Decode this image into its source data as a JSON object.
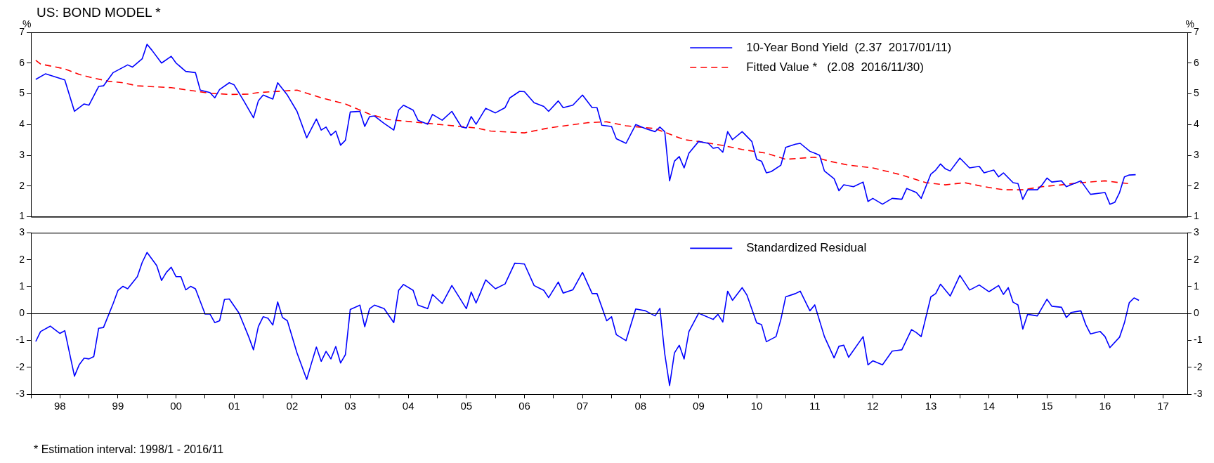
{
  "chart_data": [
    {
      "type": "line",
      "title": "US: BOND MODEL *",
      "ylabel": "%",
      "y2label": "%",
      "xlim": [
        "1998-01",
        "2017-12"
      ],
      "ylim": [
        1,
        7
      ],
      "yticks": [
        1,
        2,
        3,
        4,
        5,
        6,
        7
      ],
      "y2lim": [
        1,
        7
      ],
      "y2ticks": [
        1,
        2,
        3,
        4,
        5,
        6,
        7
      ],
      "tick_labels": "y",
      "legend": "top",
      "grid": false,
      "series": [
        {
          "name": "10-Year Bond Yield  (2.37  2017/01/11)",
          "color": "#0000ff",
          "line_style": "solid",
          "x": [
            "1998-02",
            "1998-04",
            "1998-08",
            "1998-10",
            "1998-12",
            "1999-01",
            "1999-03",
            "1999-04",
            "1999-06",
            "1999-09",
            "1999-10",
            "1999-12",
            "2000-01",
            "2000-02",
            "2000-04",
            "2000-06",
            "2000-07",
            "2000-09",
            "2000-11",
            "2000-12",
            "2001-02",
            "2001-03",
            "2001-04",
            "2001-06",
            "2001-07",
            "2001-09",
            "2001-11",
            "2001-12",
            "2002-01",
            "2002-03",
            "2002-04",
            "2002-06",
            "2002-08",
            "2002-10",
            "2002-12",
            "2003-01",
            "2003-02",
            "2003-03",
            "2003-04",
            "2003-05",
            "2003-06",
            "2003-07",
            "2003-09",
            "2003-10",
            "2003-11",
            "2003-12",
            "2004-02",
            "2004-04",
            "2004-05",
            "2004-06",
            "2004-08",
            "2004-09",
            "2004-11",
            "2004-12",
            "2005-02",
            "2005-04",
            "2005-06",
            "2005-07",
            "2005-08",
            "2005-09",
            "2005-11",
            "2006-01",
            "2006-03",
            "2006-04",
            "2006-06",
            "2006-07",
            "2006-09",
            "2006-11",
            "2006-12",
            "2007-02",
            "2007-03",
            "2007-05",
            "2007-07",
            "2007-09",
            "2007-10",
            "2007-11",
            "2008-01",
            "2008-02",
            "2008-04",
            "2008-06",
            "2008-08",
            "2008-10",
            "2008-11",
            "2008-12",
            "2009-01",
            "2009-02",
            "2009-03",
            "2009-04",
            "2009-05",
            "2009-07",
            "2009-09",
            "2009-10",
            "2009-11",
            "2009-12",
            "2010-01",
            "2010-02",
            "2010-04",
            "2010-06",
            "2010-07",
            "2010-08",
            "2010-09",
            "2010-10",
            "2010-12",
            "2011-01",
            "2011-03",
            "2011-04",
            "2011-06",
            "2011-07",
            "2011-08",
            "2011-09",
            "2011-11",
            "2011-12",
            "2012-01",
            "2012-03",
            "2012-05",
            "2012-06",
            "2012-07",
            "2012-09",
            "2012-11",
            "2013-01",
            "2013-02",
            "2013-04",
            "2013-05",
            "2013-07",
            "2013-08",
            "2013-09",
            "2013-10",
            "2013-11",
            "2014-01",
            "2014-03",
            "2014-05",
            "2014-06",
            "2014-08",
            "2014-09",
            "2014-10",
            "2014-12",
            "2015-01",
            "2015-02",
            "2015-03",
            "2015-05",
            "2015-06",
            "2015-07",
            "2015-08",
            "2015-10",
            "2015-11",
            "2016-02",
            "2016-04",
            "2016-07",
            "2016-08",
            "2016-09",
            "2016-10",
            "2016-11",
            "2016-12",
            "2017-01-11"
          ],
          "values": [
            5.47,
            5.65,
            5.45,
            4.43,
            4.67,
            4.63,
            5.24,
            5.26,
            5.69,
            5.94,
            5.87,
            6.14,
            6.61,
            6.42,
            6.0,
            6.22,
            6.0,
            5.73,
            5.69,
            5.12,
            5.04,
            4.87,
            5.14,
            5.36,
            5.29,
            4.77,
            4.22,
            4.77,
            4.96,
            4.83,
            5.36,
            4.96,
            4.43,
            3.57,
            4.18,
            3.82,
            3.92,
            3.65,
            3.79,
            3.33,
            3.49,
            4.41,
            4.43,
            3.94,
            4.26,
            4.28,
            4.04,
            3.82,
            4.47,
            4.63,
            4.47,
            4.14,
            4.01,
            4.33,
            4.14,
            4.43,
            3.92,
            3.89,
            4.26,
            4.01,
            4.53,
            4.38,
            4.55,
            4.87,
            5.08,
            5.07,
            4.71,
            4.59,
            4.43,
            4.77,
            4.55,
            4.63,
            4.96,
            4.55,
            4.55,
            3.98,
            3.94,
            3.54,
            3.39,
            4.0,
            3.87,
            3.77,
            3.92,
            3.77,
            2.17,
            2.81,
            2.96,
            2.59,
            3.07,
            3.45,
            3.39,
            3.23,
            3.26,
            3.1,
            3.77,
            3.51,
            3.77,
            3.45,
            2.87,
            2.81,
            2.43,
            2.47,
            2.68,
            3.26,
            3.36,
            3.39,
            3.13,
            3.07,
            3.0,
            2.49,
            2.24,
            1.85,
            2.04,
            1.98,
            2.13,
            1.5,
            1.6,
            1.41,
            1.6,
            1.57,
            1.92,
            1.79,
            1.6,
            2.39,
            2.52,
            2.72,
            2.56,
            2.49,
            2.91,
            2.59,
            2.64,
            2.43,
            2.52,
            2.3,
            2.43,
            2.11,
            2.08,
            1.57,
            1.88,
            1.88,
            2.04,
            2.26,
            2.13,
            2.17,
            1.98,
            2.17,
            1.73,
            1.79,
            1.41,
            1.47,
            1.79,
            2.3,
            2.36,
            2.37
          ]
        },
        {
          "name": "Fitted Value *   (2.08  2016/11/30)",
          "color": "#ff0000",
          "line_style": "dashed",
          "x": [
            "1998-02",
            "1998-03",
            "1998-08",
            "1998-11",
            "1999-02",
            "1999-05",
            "1999-08",
            "1999-11",
            "2000-06",
            "2001-02",
            "2001-06",
            "2001-10",
            "2001-12",
            "2002-08",
            "2003-01",
            "2003-06",
            "2003-11",
            "2004-03",
            "2005-01",
            "2005-09",
            "2005-12",
            "2006-07",
            "2006-12",
            "2007-08",
            "2007-12",
            "2008-04",
            "2008-10",
            "2009-04",
            "2009-07",
            "2009-12",
            "2010-04",
            "2010-09",
            "2011-01",
            "2011-07",
            "2011-10",
            "2012-02",
            "2012-07",
            "2013-01",
            "2013-06",
            "2013-10",
            "2014-02",
            "2014-06",
            "2014-10",
            "2015-02",
            "2015-06",
            "2015-10",
            "2016-02",
            "2016-07",
            "2016-10",
            "2016-11-30"
          ],
          "values": [
            6.09,
            5.97,
            5.81,
            5.63,
            5.51,
            5.41,
            5.36,
            5.26,
            5.2,
            5.02,
            4.98,
            4.99,
            5.04,
            5.12,
            4.87,
            4.67,
            4.34,
            4.16,
            4.01,
            3.89,
            3.79,
            3.73,
            3.89,
            4.06,
            4.09,
            3.96,
            3.87,
            3.51,
            3.45,
            3.32,
            3.19,
            3.07,
            2.87,
            2.94,
            2.81,
            2.68,
            2.59,
            2.36,
            2.11,
            2.04,
            2.11,
            1.98,
            1.88,
            1.88,
            1.98,
            2.04,
            2.11,
            2.17,
            2.11,
            2.08
          ]
        }
      ]
    },
    {
      "type": "line",
      "xlim": [
        "1998-01",
        "2017-12"
      ],
      "ylim": [
        -3,
        3
      ],
      "yticks": [
        -3,
        -2,
        -1,
        0,
        1,
        2,
        3
      ],
      "y2lim": [
        -3,
        3
      ],
      "y2ticks": [
        -3,
        -2,
        -1,
        0,
        1,
        2,
        3
      ],
      "legend": "top",
      "grid": false,
      "xticks": [
        {
          "value": "1998",
          "label": null
        },
        {
          "value": "1998-07",
          "label": "98"
        },
        {
          "value": "1999",
          "label": null
        },
        {
          "value": "1999-07",
          "label": "99"
        },
        {
          "value": "2000",
          "label": null
        },
        {
          "value": "2000-07",
          "label": "00"
        },
        {
          "value": "2001",
          "label": null
        },
        {
          "value": "2001-07",
          "label": "01"
        },
        {
          "value": "2002",
          "label": null
        },
        {
          "value": "2002-07",
          "label": "02"
        },
        {
          "value": "2003",
          "label": null
        },
        {
          "value": "2003-07",
          "label": "03"
        },
        {
          "value": "2004",
          "label": null
        },
        {
          "value": "2004-07",
          "label": "04"
        },
        {
          "value": "2005",
          "label": null
        },
        {
          "value": "2005-07",
          "label": "05"
        },
        {
          "value": "2006",
          "label": null
        },
        {
          "value": "2006-07",
          "label": "06"
        },
        {
          "value": "2007",
          "label": null
        },
        {
          "value": "2007-07",
          "label": "07"
        },
        {
          "value": "2008",
          "label": null
        },
        {
          "value": "2008-07",
          "label": "08"
        },
        {
          "value": "2009",
          "label": null
        },
        {
          "value": "2009-07",
          "label": "09"
        },
        {
          "value": "2010",
          "label": null
        },
        {
          "value": "2010-07",
          "label": "10"
        },
        {
          "value": "2011",
          "label": null
        },
        {
          "value": "2011-07",
          "label": "11"
        },
        {
          "value": "2012",
          "label": null
        },
        {
          "value": "2012-07",
          "label": "12"
        },
        {
          "value": "2013",
          "label": null
        },
        {
          "value": "2013-07",
          "label": "13"
        },
        {
          "value": "2014",
          "label": null
        },
        {
          "value": "2014-07",
          "label": "14"
        },
        {
          "value": "2015",
          "label": null
        },
        {
          "value": "2015-07",
          "label": "15"
        },
        {
          "value": "2016",
          "label": null
        },
        {
          "value": "2016-07",
          "label": "16"
        },
        {
          "value": "2017",
          "label": null
        },
        {
          "value": "2017-07",
          "label": "17"
        }
      ],
      "ref_lines": [
        {
          "axis": "y",
          "value": 0,
          "color": "#000000"
        }
      ],
      "annotations": [
        "* Estimation interval: 1998/1 - 2016/11"
      ],
      "series": [
        {
          "name": "Standardized Residual",
          "color": "#0000ff",
          "x": [
            "1998-02",
            "1998-03",
            "1998-05",
            "1998-07",
            "1998-08",
            "1998-10",
            "1998-11",
            "1998-12",
            "1999-01",
            "1999-02",
            "1999-03",
            "1999-04",
            "1999-06",
            "1999-07",
            "1999-08",
            "1999-09",
            "1999-11",
            "1999-12",
            "2000-01",
            "2000-03",
            "2000-04",
            "2000-05",
            "2000-06",
            "2000-07",
            "2000-08",
            "2000-09",
            "2000-10",
            "2000-11",
            "2001-01",
            "2001-02",
            "2001-03",
            "2001-04",
            "2001-05",
            "2001-06",
            "2001-08",
            "2001-10",
            "2001-11",
            "2001-12",
            "2002-01",
            "2002-02",
            "2002-03",
            "2002-04",
            "2002-05",
            "2002-06",
            "2002-08",
            "2002-10",
            "2002-11",
            "2002-12",
            "2003-01",
            "2003-02",
            "2003-03",
            "2003-04",
            "2003-05",
            "2003-06",
            "2003-07",
            "2003-09",
            "2003-10",
            "2003-11",
            "2003-12",
            "2004-02",
            "2004-04",
            "2004-05",
            "2004-06",
            "2004-08",
            "2004-09",
            "2004-11",
            "2004-12",
            "2005-02",
            "2005-04",
            "2005-07",
            "2005-08",
            "2005-09",
            "2005-11",
            "2006-01",
            "2006-03",
            "2006-05",
            "2006-07",
            "2006-09",
            "2006-11",
            "2006-12",
            "2007-02",
            "2007-03",
            "2007-05",
            "2007-07",
            "2007-09",
            "2007-10",
            "2007-12",
            "2008-01",
            "2008-02",
            "2008-04",
            "2008-06",
            "2008-08",
            "2008-10",
            "2008-11",
            "2008-12",
            "2009-01",
            "2009-02",
            "2009-03",
            "2009-04",
            "2009-05",
            "2009-07",
            "2009-10",
            "2009-11",
            "2009-12",
            "2010-01",
            "2010-02",
            "2010-04",
            "2010-05",
            "2010-07",
            "2010-08",
            "2010-09",
            "2010-11",
            "2010-12",
            "2011-01",
            "2011-03",
            "2011-04",
            "2011-06",
            "2011-07",
            "2011-09",
            "2011-11",
            "2011-12",
            "2012-01",
            "2012-02",
            "2012-05",
            "2012-06",
            "2012-07",
            "2012-09",
            "2012-11",
            "2013-01",
            "2013-03",
            "2013-04",
            "2013-05",
            "2013-07",
            "2013-08",
            "2013-09",
            "2013-11",
            "2014-01",
            "2014-03",
            "2014-05",
            "2014-07",
            "2014-09",
            "2014-10",
            "2014-11",
            "2014-12",
            "2015-01",
            "2015-02",
            "2015-03",
            "2015-05",
            "2015-07",
            "2015-08",
            "2015-10",
            "2015-11",
            "2015-12",
            "2016-02",
            "2016-03",
            "2016-04",
            "2016-06",
            "2016-07",
            "2016-08",
            "2016-10",
            "2016-11",
            "2016-12",
            "2017-01",
            "2017-02"
          ],
          "values": [
            -1.04,
            -0.67,
            -0.47,
            -0.74,
            -0.64,
            -2.33,
            -1.9,
            -1.66,
            -1.69,
            -1.6,
            -0.55,
            -0.52,
            0.37,
            0.86,
            1.01,
            0.92,
            1.37,
            1.9,
            2.27,
            1.78,
            1.23,
            1.53,
            1.72,
            1.37,
            1.37,
            0.88,
            1.01,
            0.92,
            -0.02,
            -0.02,
            -0.34,
            -0.27,
            0.52,
            0.54,
            0.02,
            -0.86,
            -1.35,
            -0.49,
            -0.12,
            -0.18,
            -0.43,
            0.43,
            -0.15,
            -0.27,
            -1.47,
            -2.45,
            -1.84,
            -1.25,
            -1.78,
            -1.41,
            -1.69,
            -1.23,
            -1.84,
            -1.53,
            0.15,
            0.31,
            -0.49,
            0.18,
            0.31,
            0.18,
            -0.34,
            0.86,
            1.08,
            0.86,
            0.31,
            0.18,
            0.71,
            0.37,
            1.04,
            0.18,
            0.8,
            0.39,
            1.25,
            0.92,
            1.1,
            1.87,
            1.84,
            1.04,
            0.86,
            0.59,
            1.17,
            0.76,
            0.88,
            1.53,
            0.74,
            0.74,
            -0.27,
            -0.12,
            -0.79,
            -1.01,
            0.17,
            0.1,
            -0.09,
            0.19,
            -1.5,
            -2.68,
            -1.47,
            -1.18,
            -1.69,
            -0.67,
            0.01,
            -0.22,
            -0.03,
            -0.32,
            0.83,
            0.49,
            0.96,
            0.68,
            -0.35,
            -0.41,
            -1.05,
            -0.86,
            -0.22,
            0.62,
            0.74,
            0.83,
            0.1,
            0.32,
            -0.86,
            -1.65,
            -1.22,
            -1.18,
            -1.63,
            -0.86,
            -1.91,
            -1.76,
            -1.91,
            -1.4,
            -1.35,
            -0.6,
            -0.71,
            -0.86,
            0.62,
            0.74,
            1.09,
            0.65,
            1.42,
            0.87,
            1.06,
            0.81,
            1.04,
            0.71,
            0.96,
            0.42,
            0.32,
            -0.58,
            -0.03,
            -0.09,
            0.53,
            0.27,
            0.23,
            -0.15,
            0.04,
            0.1,
            -0.41,
            -0.76,
            -0.67,
            -0.86,
            -1.27,
            -0.88,
            -0.35,
            0.4,
            0.58,
            0.49
          ]
        }
      ]
    }
  ]
}
